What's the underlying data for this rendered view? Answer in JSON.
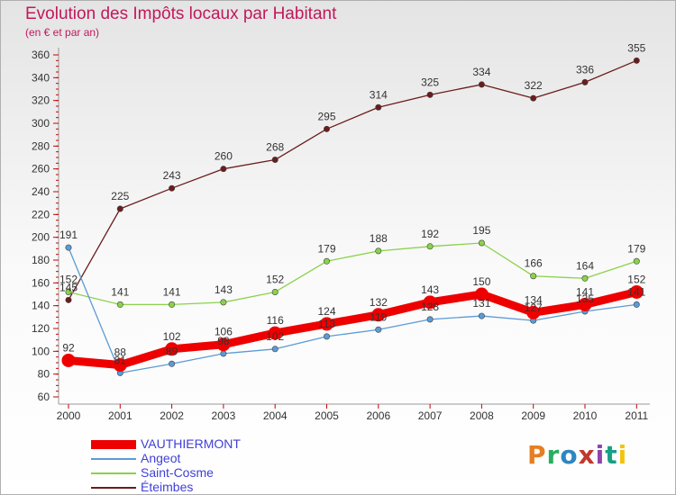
{
  "header": {
    "title": "Evolution des Impôts locaux par Habitant",
    "subtitle": "(en € et par an)"
  },
  "logo": {
    "text": "Proxiti",
    "colors": [
      "#e67e22",
      "#27ae60",
      "#2e86c1",
      "#c0392b",
      "#8e44ad",
      "#16a085",
      "#f1c40f"
    ]
  },
  "chart_data": {
    "type": "line",
    "title": "Evolution des Impôts locaux par Habitant",
    "subtitle": "(en € et par an)",
    "xlabel": "",
    "ylabel": "",
    "categories": [
      "2000",
      "2001",
      "2002",
      "2003",
      "2004",
      "2005",
      "2006",
      "2007",
      "2008",
      "2009",
      "2010",
      "2011"
    ],
    "ylim": [
      60,
      360
    ],
    "yticks": [
      60,
      80,
      100,
      120,
      140,
      160,
      180,
      200,
      220,
      240,
      260,
      280,
      300,
      320,
      340,
      360
    ],
    "grid": false,
    "legend_position": "bottom-left",
    "series": [
      {
        "name": "Éteimbes",
        "color": "#6b1c1c",
        "style": "thin",
        "values": [
          145,
          225,
          243,
          260,
          268,
          295,
          314,
          325,
          334,
          322,
          336,
          355
        ],
        "labels": [
          "145",
          "225",
          "243",
          "260",
          "268",
          "295",
          "314",
          "325",
          "334",
          "322",
          "336",
          "355"
        ]
      },
      {
        "name": "Saint-Cosme",
        "color": "#8ad24a",
        "style": "thin",
        "values": [
          152,
          141,
          141,
          143,
          152,
          179,
          188,
          192,
          195,
          166,
          164,
          179
        ],
        "labels": [
          "152",
          "141",
          "141",
          "143",
          "152",
          "179",
          "188",
          "192",
          "195",
          "166",
          "164",
          "179"
        ]
      },
      {
        "name": "Angeot",
        "color": "#5b9bd5",
        "style": "thin",
        "values": [
          191,
          81,
          89,
          98,
          102,
          113,
          119,
          128,
          131,
          127,
          135,
          141
        ],
        "labels": [
          "191",
          "81",
          "89",
          "98",
          "102",
          "113",
          "119",
          "128",
          "131",
          "127",
          "135",
          "141"
        ]
      },
      {
        "name": "VAUTHIERMONT",
        "color": "#ee0000",
        "style": "thick",
        "values": [
          92,
          88,
          102,
          106,
          116,
          124,
          132,
          143,
          150,
          134,
          141,
          152
        ],
        "labels": [
          "92",
          "88",
          "102",
          "106",
          "116",
          "124",
          "132",
          "143",
          "150",
          "134",
          "141",
          "152"
        ]
      }
    ]
  },
  "legend": {
    "items": [
      {
        "label": "VAUTHIERMONT",
        "color": "#ee0000",
        "thickness": 10
      },
      {
        "label": "Angeot",
        "color": "#5b9bd5",
        "thickness": 2
      },
      {
        "label": "Saint-Cosme",
        "color": "#8ad24a",
        "thickness": 2
      },
      {
        "label": "Éteimbes",
        "color": "#6b1c1c",
        "thickness": 2
      }
    ]
  }
}
